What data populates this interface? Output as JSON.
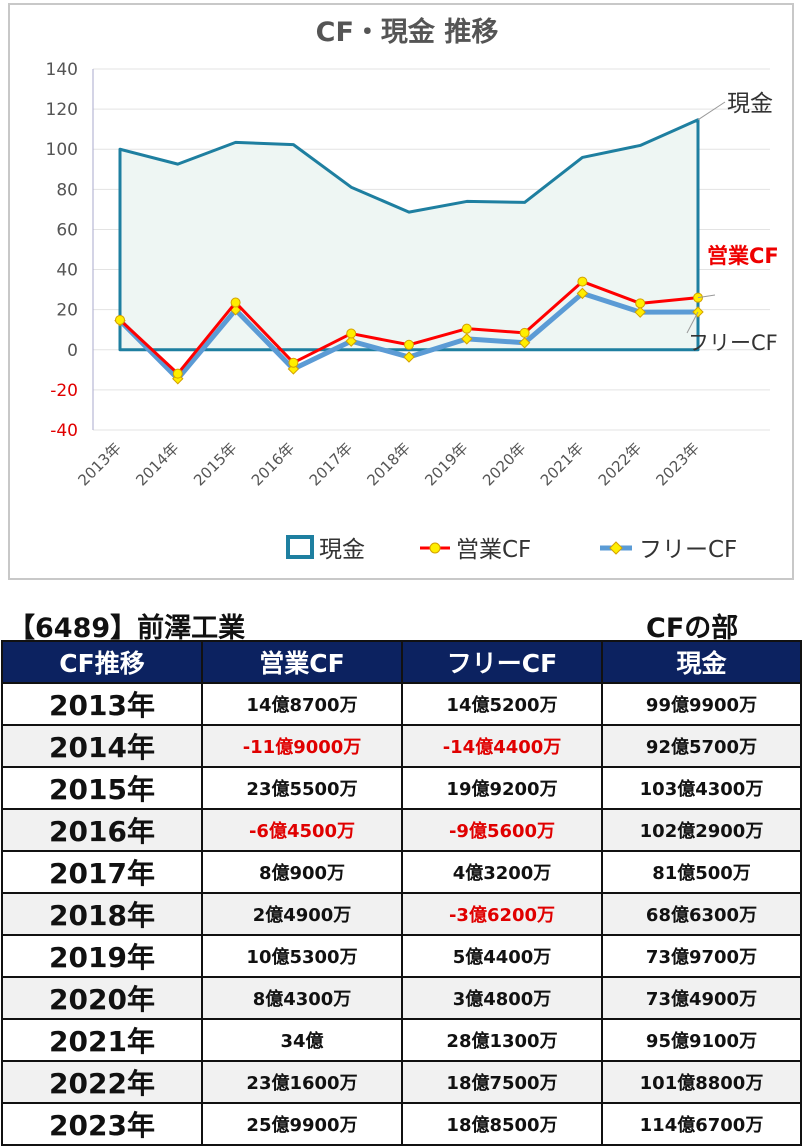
{
  "chart_data": {
    "type": "line",
    "title": "CF・現金 推移",
    "categories": [
      "2013年",
      "2014年",
      "2015年",
      "2016年",
      "2017年",
      "2018年",
      "2019年",
      "2020年",
      "2021年",
      "2022年",
      "2023年"
    ],
    "ylim": [
      -40,
      140
    ],
    "yticks": [
      140,
      120,
      100,
      80,
      60,
      40,
      20,
      0,
      -20,
      -40
    ],
    "negative_tick_color": "#e00000",
    "grid": true,
    "legend_position": "bottom",
    "series": [
      {
        "name": "現金",
        "style": "area",
        "color": "#1e7fa0",
        "fill": "#eef6f3",
        "values": [
          99.99,
          92.57,
          103.43,
          102.29,
          81.05,
          68.63,
          73.97,
          73.49,
          95.91,
          101.88,
          114.67
        ]
      },
      {
        "name": "営業CF",
        "style": "line-marker",
        "color": "#ff0000",
        "marker_color": "#ffee00",
        "values": [
          14.87,
          -11.9,
          23.55,
          -6.45,
          8.09,
          2.49,
          10.53,
          8.43,
          34,
          23.16,
          25.99
        ]
      },
      {
        "name": "フリーCF",
        "style": "line-marker",
        "color": "#5b9bd5",
        "marker_color": "#ffee00",
        "values": [
          14.52,
          -14.44,
          19.92,
          -9.56,
          4.32,
          -3.62,
          5.44,
          3.48,
          28.13,
          18.75,
          18.85
        ]
      }
    ],
    "end_labels": [
      {
        "text": "現金",
        "color": "#333333"
      },
      {
        "text": "営業CF",
        "color": "#ee0000"
      },
      {
        "text": "フリーCF",
        "color": "#333333"
      }
    ]
  },
  "company_label": "【6489】前澤工業",
  "section_label": "CFの部",
  "table": {
    "headers": [
      "CF推移",
      "営業CF",
      "フリーCF",
      "現金"
    ],
    "rows": [
      {
        "year": "2013年",
        "op": "14億8700万",
        "free": "14億5200万",
        "cash": "99億9900万",
        "op_neg": false,
        "free_neg": false
      },
      {
        "year": "2014年",
        "op": "-11億9000万",
        "free": "-14億4400万",
        "cash": "92億5700万",
        "op_neg": true,
        "free_neg": true
      },
      {
        "year": "2015年",
        "op": "23億5500万",
        "free": "19億9200万",
        "cash": "103億4300万",
        "op_neg": false,
        "free_neg": false
      },
      {
        "year": "2016年",
        "op": "-6億4500万",
        "free": "-9億5600万",
        "cash": "102億2900万",
        "op_neg": true,
        "free_neg": true
      },
      {
        "year": "2017年",
        "op": "8億900万",
        "free": "4億3200万",
        "cash": "81億500万",
        "op_neg": false,
        "free_neg": false
      },
      {
        "year": "2018年",
        "op": "2億4900万",
        "free": "-3億6200万",
        "cash": "68億6300万",
        "op_neg": false,
        "free_neg": true
      },
      {
        "year": "2019年",
        "op": "10億5300万",
        "free": "5億4400万",
        "cash": "73億9700万",
        "op_neg": false,
        "free_neg": false
      },
      {
        "year": "2020年",
        "op": "8億4300万",
        "free": "3億4800万",
        "cash": "73億4900万",
        "op_neg": false,
        "free_neg": false
      },
      {
        "year": "2021年",
        "op": "34億",
        "free": "28億1300万",
        "cash": "95億9100万",
        "op_neg": false,
        "free_neg": false
      },
      {
        "year": "2022年",
        "op": "23億1600万",
        "free": "18億7500万",
        "cash": "101億8800万",
        "op_neg": false,
        "free_neg": false
      },
      {
        "year": "2023年",
        "op": "25億9900万",
        "free": "18億8500万",
        "cash": "114億6700万",
        "op_neg": false,
        "free_neg": false
      }
    ]
  }
}
